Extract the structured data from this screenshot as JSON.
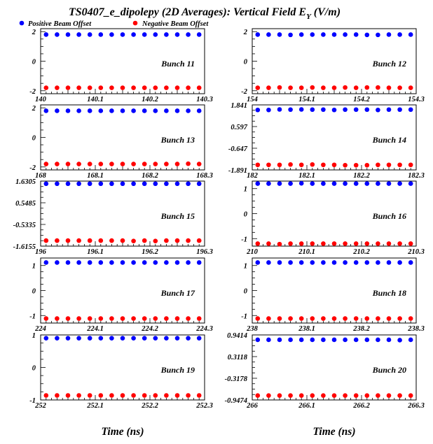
{
  "title": {
    "main": "TS0407_e_dipolepy (2D Averages): Vertical Field E",
    "sub": "Y",
    "units": " (V/m)"
  },
  "legend": {
    "items": [
      {
        "label": "Positive Beam Offset",
        "color": "#0000ff"
      },
      {
        "label": "Negative Beam Offset",
        "color": "#ff0000"
      }
    ]
  },
  "xlabel": "Time (ns)",
  "colors": {
    "positive": "#0000ff",
    "negative": "#ff0000",
    "axis": "#000000",
    "background": "#ffffff"
  },
  "chart_data": [
    {
      "type": "scatter",
      "label": "Bunch 11",
      "xlim": [
        140,
        140.3
      ],
      "ylim": [
        -2.2,
        2.2
      ],
      "xticks": [
        "140",
        "140.1",
        "140.2",
        "140.3"
      ],
      "yticks": [
        {
          "v": 2,
          "t": "2"
        },
        {
          "v": 0,
          "t": "0"
        },
        {
          "v": -2,
          "t": "-2"
        }
      ],
      "x": [
        140.01,
        140.03,
        140.05,
        140.07,
        140.09,
        140.11,
        140.13,
        140.15,
        140.17,
        140.19,
        140.21,
        140.23,
        140.25,
        140.27,
        140.29
      ],
      "series": [
        {
          "name": "Positive Beam Offset",
          "values": [
            1.8,
            1.8,
            1.8,
            1.8,
            1.8,
            1.8,
            1.8,
            1.8,
            1.8,
            1.8,
            1.8,
            1.8,
            1.8,
            1.8,
            1.8
          ]
        },
        {
          "name": "Negative Beam Offset",
          "values": [
            -1.8,
            -1.8,
            -1.8,
            -1.8,
            -1.8,
            -1.8,
            -1.8,
            -1.8,
            -1.8,
            -1.8,
            -1.8,
            -1.8,
            -1.8,
            -1.8,
            -1.8
          ]
        }
      ]
    },
    {
      "type": "scatter",
      "label": "Bunch 12",
      "xlim": [
        154,
        154.3
      ],
      "ylim": [
        -2.2,
        2.2
      ],
      "xticks": [
        "154",
        "154.1",
        "154.2",
        "154.3"
      ],
      "yticks": [
        {
          "v": 2,
          "t": "2"
        },
        {
          "v": 0,
          "t": "0"
        },
        {
          "v": -2,
          "t": "-2"
        }
      ],
      "x": [
        154.01,
        154.03,
        154.05,
        154.07,
        154.09,
        154.11,
        154.13,
        154.15,
        154.17,
        154.19,
        154.21,
        154.23,
        154.25,
        154.27,
        154.29
      ],
      "series": [
        {
          "name": "Positive Beam Offset",
          "values": [
            1.8,
            1.8,
            1.8,
            1.78,
            1.8,
            1.8,
            1.8,
            1.8,
            1.8,
            1.8,
            1.78,
            1.78,
            1.8,
            1.8,
            1.8
          ]
        },
        {
          "name": "Negative Beam Offset",
          "values": [
            -1.8,
            -1.8,
            -1.78,
            -1.8,
            -1.8,
            -1.78,
            -1.8,
            -1.8,
            -1.78,
            -1.8,
            -1.78,
            -1.78,
            -1.8,
            -1.8,
            -1.8
          ]
        }
      ]
    },
    {
      "type": "scatter",
      "label": "Bunch 13",
      "xlim": [
        168,
        168.3
      ],
      "ylim": [
        -2.2,
        2.2
      ],
      "xticks": [
        "168",
        "168.1",
        "168.2",
        "168.3"
      ],
      "yticks": [
        {
          "v": 2,
          "t": "2"
        },
        {
          "v": 0,
          "t": "0"
        },
        {
          "v": -2,
          "t": "-2"
        }
      ],
      "x": [
        168.01,
        168.03,
        168.05,
        168.07,
        168.09,
        168.11,
        168.13,
        168.15,
        168.17,
        168.19,
        168.21,
        168.23,
        168.25,
        168.27,
        168.29
      ],
      "series": [
        {
          "name": "Positive Beam Offset",
          "values": [
            1.8,
            1.8,
            1.8,
            1.8,
            1.8,
            1.8,
            1.8,
            1.8,
            1.8,
            1.8,
            1.8,
            1.8,
            1.8,
            1.8,
            1.8
          ]
        },
        {
          "name": "Negative Beam Offset",
          "values": [
            -1.8,
            -1.8,
            -1.8,
            -1.8,
            -1.8,
            -1.8,
            -1.8,
            -1.8,
            -1.8,
            -1.8,
            -1.8,
            -1.8,
            -1.8,
            -1.78,
            -1.8
          ]
        }
      ]
    },
    {
      "type": "scatter",
      "label": "Bunch 14",
      "xlim": [
        182,
        182.3
      ],
      "ylim": [
        -1.891,
        1.841
      ],
      "xticks": [
        "182",
        "182.1",
        "182.2",
        "182.3"
      ],
      "yticks": [
        {
          "v": 1.841,
          "t": "1.841"
        },
        {
          "v": 0.597,
          "t": "0.597"
        },
        {
          "v": -0.647,
          "t": "-0.647"
        },
        {
          "v": -1.891,
          "t": "-1.891"
        }
      ],
      "x": [
        182.01,
        182.03,
        182.05,
        182.07,
        182.09,
        182.11,
        182.13,
        182.15,
        182.17,
        182.19,
        182.21,
        182.23,
        182.25,
        182.27,
        182.29
      ],
      "series": [
        {
          "name": "Positive Beam Offset",
          "values": [
            1.55,
            1.55,
            1.58,
            1.57,
            1.58,
            1.57,
            1.57,
            1.55,
            1.57,
            1.57,
            1.57,
            1.55,
            1.57,
            1.57,
            1.57
          ]
        },
        {
          "name": "Negative Beam Offset",
          "values": [
            -1.6,
            -1.6,
            -1.6,
            -1.58,
            -1.6,
            -1.58,
            -1.6,
            -1.6,
            -1.62,
            -1.62,
            -1.62,
            -1.6,
            -1.6,
            -1.6,
            -1.6
          ]
        }
      ]
    },
    {
      "type": "scatter",
      "label": "Bunch 15",
      "xlim": [
        196,
        196.3
      ],
      "ylim": [
        -1.6155,
        1.6305
      ],
      "xticks": [
        "196",
        "196.1",
        "196.2",
        "196.3"
      ],
      "yticks": [
        {
          "v": 1.6305,
          "t": "1.6305"
        },
        {
          "v": 0.5485,
          "t": "0.5485"
        },
        {
          "v": -0.5335,
          "t": "-0.5335"
        },
        {
          "v": -1.6155,
          "t": "-1.6155"
        }
      ],
      "x": [
        196.01,
        196.03,
        196.05,
        196.07,
        196.09,
        196.11,
        196.13,
        196.15,
        196.17,
        196.19,
        196.21,
        196.23,
        196.25,
        196.27,
        196.29
      ],
      "series": [
        {
          "name": "Positive Beam Offset",
          "values": [
            1.5,
            1.5,
            1.5,
            1.5,
            1.5,
            1.5,
            1.5,
            1.5,
            1.5,
            1.5,
            1.5,
            1.5,
            1.5,
            1.5,
            1.5
          ]
        },
        {
          "name": "Negative Beam Offset",
          "values": [
            -1.34,
            -1.34,
            -1.34,
            -1.34,
            -1.34,
            -1.34,
            -1.34,
            -1.34,
            -1.36,
            -1.34,
            -1.36,
            -1.34,
            -1.34,
            -1.34,
            -1.34
          ]
        }
      ]
    },
    {
      "type": "scatter",
      "label": "Bunch 16",
      "xlim": [
        210,
        210.3
      ],
      "ylim": [
        -1.3,
        1.3
      ],
      "xticks": [
        "210",
        "210.1",
        "210.2",
        "210.3"
      ],
      "yticks": [
        {
          "v": 1,
          "t": "1"
        },
        {
          "v": 0,
          "t": "0"
        },
        {
          "v": -1,
          "t": "-1"
        }
      ],
      "x": [
        210.01,
        210.03,
        210.05,
        210.07,
        210.09,
        210.11,
        210.13,
        210.15,
        210.17,
        210.19,
        210.21,
        210.23,
        210.25,
        210.27,
        210.29
      ],
      "series": [
        {
          "name": "Positive Beam Offset",
          "values": [
            1.2,
            1.2,
            1.2,
            1.2,
            1.21,
            1.2,
            1.2,
            1.2,
            1.2,
            1.2,
            1.2,
            1.2,
            1.2,
            1.2,
            1.2
          ]
        },
        {
          "name": "Negative Beam Offset",
          "values": [
            -1.2,
            -1.2,
            -1.22,
            -1.2,
            -1.2,
            -1.2,
            -1.2,
            -1.2,
            -1.2,
            -1.2,
            -1.2,
            -1.2,
            -1.2,
            -1.2,
            -1.2
          ]
        }
      ]
    },
    {
      "type": "scatter",
      "label": "Bunch 17",
      "xlim": [
        224,
        224.3
      ],
      "ylim": [
        -1.3,
        1.3
      ],
      "xticks": [
        "224",
        "224.1",
        "224.2",
        "224.3"
      ],
      "yticks": [
        {
          "v": 1,
          "t": "1"
        },
        {
          "v": 0,
          "t": "0"
        },
        {
          "v": -1,
          "t": "-1"
        }
      ],
      "x": [
        224.01,
        224.03,
        224.05,
        224.07,
        224.09,
        224.11,
        224.13,
        224.15,
        224.17,
        224.19,
        224.21,
        224.23,
        224.25,
        224.27,
        224.29
      ],
      "series": [
        {
          "name": "Positive Beam Offset",
          "values": [
            1.12,
            1.12,
            1.12,
            1.12,
            1.12,
            1.12,
            1.12,
            1.12,
            1.12,
            1.12,
            1.12,
            1.12,
            1.12,
            1.12,
            1.12
          ]
        },
        {
          "name": "Negative Beam Offset",
          "values": [
            -1.12,
            -1.12,
            -1.12,
            -1.12,
            -1.12,
            -1.12,
            -1.12,
            -1.12,
            -1.12,
            -1.12,
            -1.12,
            -1.12,
            -1.12,
            -1.12,
            -1.12
          ]
        }
      ]
    },
    {
      "type": "scatter",
      "label": "Bunch 18",
      "xlim": [
        238,
        238.3
      ],
      "ylim": [
        -1.3,
        1.3
      ],
      "xticks": [
        "238",
        "238.1",
        "238.2",
        "238.3"
      ],
      "yticks": [
        {
          "v": 1,
          "t": "1"
        },
        {
          "v": 0,
          "t": "0"
        },
        {
          "v": -1,
          "t": "-1"
        }
      ],
      "x": [
        238.01,
        238.03,
        238.05,
        238.07,
        238.09,
        238.11,
        238.13,
        238.15,
        238.17,
        238.19,
        238.21,
        238.23,
        238.25,
        238.27,
        238.29
      ],
      "series": [
        {
          "name": "Positive Beam Offset",
          "values": [
            1.12,
            1.12,
            1.12,
            1.12,
            1.12,
            1.12,
            1.12,
            1.12,
            1.12,
            1.12,
            1.12,
            1.12,
            1.12,
            1.12,
            1.12
          ]
        },
        {
          "name": "Negative Beam Offset",
          "values": [
            -1.12,
            -1.12,
            -1.12,
            -1.12,
            -1.12,
            -1.12,
            -1.12,
            -1.12,
            -1.12,
            -1.12,
            -1.12,
            -1.12,
            -1.12,
            -1.12,
            -1.12
          ]
        }
      ]
    },
    {
      "type": "scatter",
      "label": "Bunch 19",
      "xlim": [
        252,
        252.3
      ],
      "ylim": [
        -1.0,
        1.0
      ],
      "xticks": [
        "252",
        "252.1",
        "252.2",
        "252.3"
      ],
      "yticks": [
        {
          "v": 1,
          "t": "1"
        },
        {
          "v": 0,
          "t": "0"
        },
        {
          "v": -1,
          "t": "-1"
        }
      ],
      "x": [
        252.01,
        252.03,
        252.05,
        252.07,
        252.09,
        252.11,
        252.13,
        252.15,
        252.17,
        252.19,
        252.21,
        252.23,
        252.25,
        252.27,
        252.29
      ],
      "series": [
        {
          "name": "Positive Beam Offset",
          "values": [
            0.9,
            0.9,
            0.9,
            0.9,
            0.9,
            0.9,
            0.9,
            0.9,
            0.9,
            0.9,
            0.9,
            0.9,
            0.9,
            0.9,
            0.9
          ]
        },
        {
          "name": "Negative Beam Offset",
          "values": [
            -0.86,
            -0.86,
            -0.86,
            -0.86,
            -0.86,
            -0.86,
            -0.86,
            -0.86,
            -0.86,
            -0.86,
            -0.86,
            -0.86,
            -0.86,
            -0.86,
            -0.86
          ]
        }
      ]
    },
    {
      "type": "scatter",
      "label": "Bunch 20",
      "xlim": [
        266,
        266.3
      ],
      "ylim": [
        -0.9474,
        0.9414
      ],
      "xticks": [
        "266",
        "266.1",
        "266.2",
        "266.3"
      ],
      "yticks": [
        {
          "v": 0.9414,
          "t": "0.9414"
        },
        {
          "v": 0.3118,
          "t": "0.3118"
        },
        {
          "v": -0.3178,
          "t": "-0.3178"
        },
        {
          "v": -0.9474,
          "t": "-0.9474"
        }
      ],
      "x": [
        266.01,
        266.03,
        266.05,
        266.07,
        266.09,
        266.11,
        266.13,
        266.15,
        266.17,
        266.19,
        266.21,
        266.23,
        266.25,
        266.27,
        266.29
      ],
      "series": [
        {
          "name": "Positive Beam Offset",
          "values": [
            0.8,
            0.8,
            0.8,
            0.8,
            0.8,
            0.8,
            0.8,
            0.8,
            0.8,
            0.8,
            0.8,
            0.8,
            0.8,
            0.79,
            0.8
          ]
        },
        {
          "name": "Negative Beam Offset",
          "values": [
            -0.82,
            -0.82,
            -0.82,
            -0.82,
            -0.82,
            -0.82,
            -0.82,
            -0.82,
            -0.82,
            -0.82,
            -0.82,
            -0.82,
            -0.82,
            -0.82,
            -0.82
          ]
        }
      ]
    }
  ]
}
